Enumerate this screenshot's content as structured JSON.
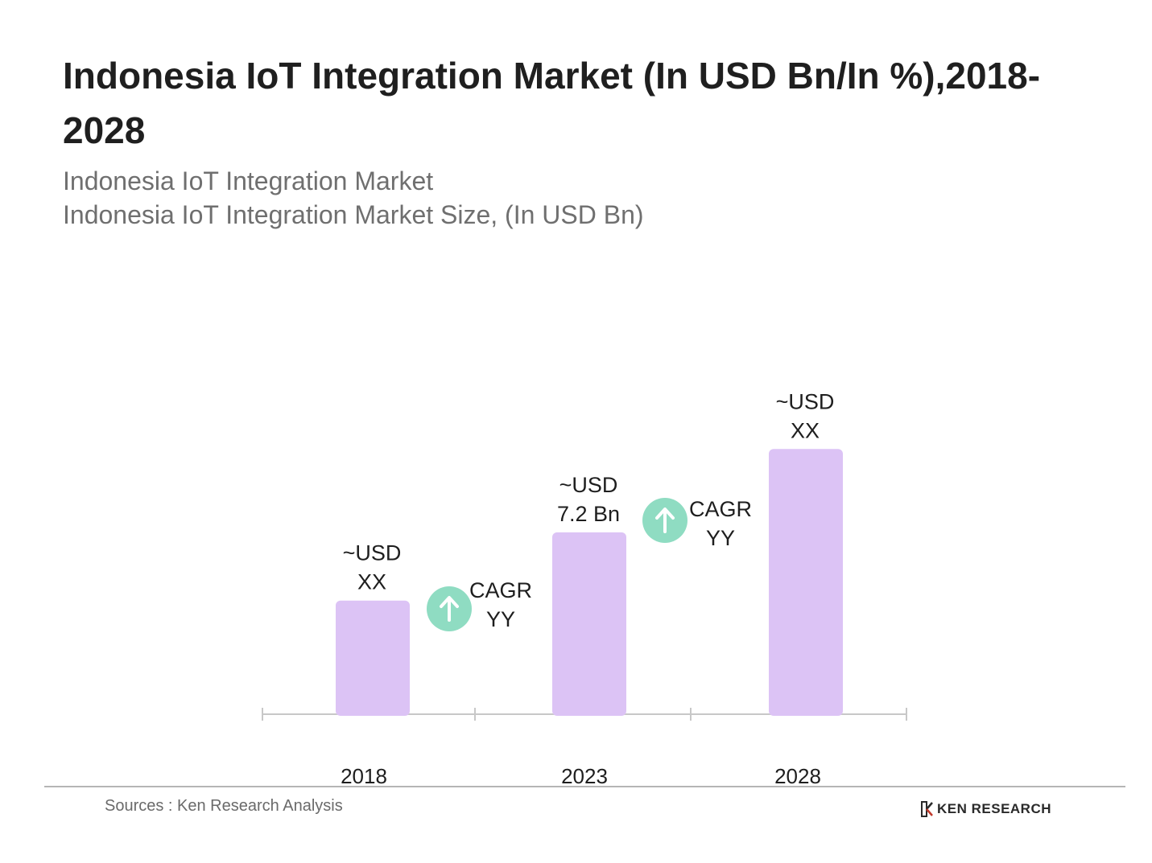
{
  "chart_data": {
    "type": "bar",
    "title": "Indonesia IoT Integration Market (In USD Bn/In %),2018-2028",
    "subtitle_lines": [
      "Indonesia IoT Integration Market",
      "Indonesia IoT Integration Market Size, (In USD Bn)"
    ],
    "categories": [
      "2018",
      "2023",
      "2028"
    ],
    "values": [
      4.5,
      7.2,
      10.5
    ],
    "data_labels": [
      [
        "~USD",
        "XX"
      ],
      [
        "~USD",
        "7.2 Bn"
      ],
      [
        "~USD",
        "XX"
      ]
    ],
    "cagr_annotations": [
      {
        "between": [
          "2018",
          "2023"
        ],
        "lines": [
          "CAGR",
          "YY"
        ]
      },
      {
        "between": [
          "2023",
          "2028"
        ],
        "lines": [
          "CAGR",
          "YY"
        ]
      }
    ],
    "bar_color": "#dcc3f5",
    "cagr_icon_color": "#8fdcc2",
    "grid": false,
    "legend": "none"
  },
  "footer": {
    "source": "Sources : Ken Research Analysis",
    "brand": "KEN RESEARCH",
    "brand_icon": "ken-research-logo-icon"
  }
}
